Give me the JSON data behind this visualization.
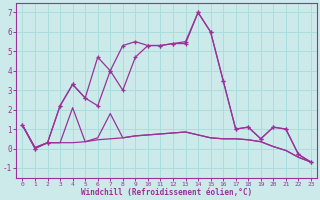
{
  "x": [
    0,
    1,
    2,
    3,
    4,
    5,
    6,
    7,
    8,
    9,
    10,
    11,
    12,
    13,
    14,
    15,
    16,
    17,
    18,
    19,
    20,
    21,
    22,
    23
  ],
  "line1": [
    1.2,
    0.0,
    0.3,
    2.2,
    3.3,
    2.6,
    2.2,
    4.0,
    3.0,
    4.7,
    5.3,
    5.3,
    5.4,
    5.4,
    7.0,
    6.0,
    3.5,
    1.0,
    1.1,
    0.5,
    1.1,
    1.0,
    -0.3,
    -0.7
  ],
  "line2": [
    1.2,
    0.0,
    0.3,
    2.2,
    3.3,
    2.6,
    4.7,
    4.0,
    5.3,
    5.5,
    5.3,
    5.3,
    5.4,
    5.5,
    7.0,
    6.0,
    3.5,
    1.0,
    1.1,
    0.5,
    1.1,
    1.0,
    -0.3,
    -0.7
  ],
  "line3": [
    1.2,
    0.05,
    0.3,
    0.3,
    0.3,
    0.35,
    0.45,
    0.5,
    0.55,
    0.65,
    0.7,
    0.75,
    0.8,
    0.85,
    0.7,
    0.55,
    0.5,
    0.5,
    0.45,
    0.35,
    0.1,
    -0.1,
    -0.45,
    -0.7
  ],
  "line4": [
    1.2,
    0.05,
    0.3,
    0.3,
    2.1,
    0.35,
    0.55,
    1.8,
    0.55,
    0.65,
    0.7,
    0.75,
    0.8,
    0.85,
    0.7,
    0.55,
    0.5,
    0.5,
    0.45,
    0.35,
    0.1,
    -0.1,
    -0.45,
    -0.7
  ],
  "color": "#993399",
  "bg_color": "#cceaea",
  "grid_color": "#aadddd",
  "xlabel": "Windchill (Refroidissement éolien,°C)",
  "xlim": [
    -0.5,
    23.5
  ],
  "ylim": [
    -1.5,
    7.5
  ],
  "yticks": [
    -1,
    0,
    1,
    2,
    3,
    4,
    5,
    6,
    7
  ],
  "xticks": [
    0,
    1,
    2,
    3,
    4,
    5,
    6,
    7,
    8,
    9,
    10,
    11,
    12,
    13,
    14,
    15,
    16,
    17,
    18,
    19,
    20,
    21,
    22,
    23
  ]
}
